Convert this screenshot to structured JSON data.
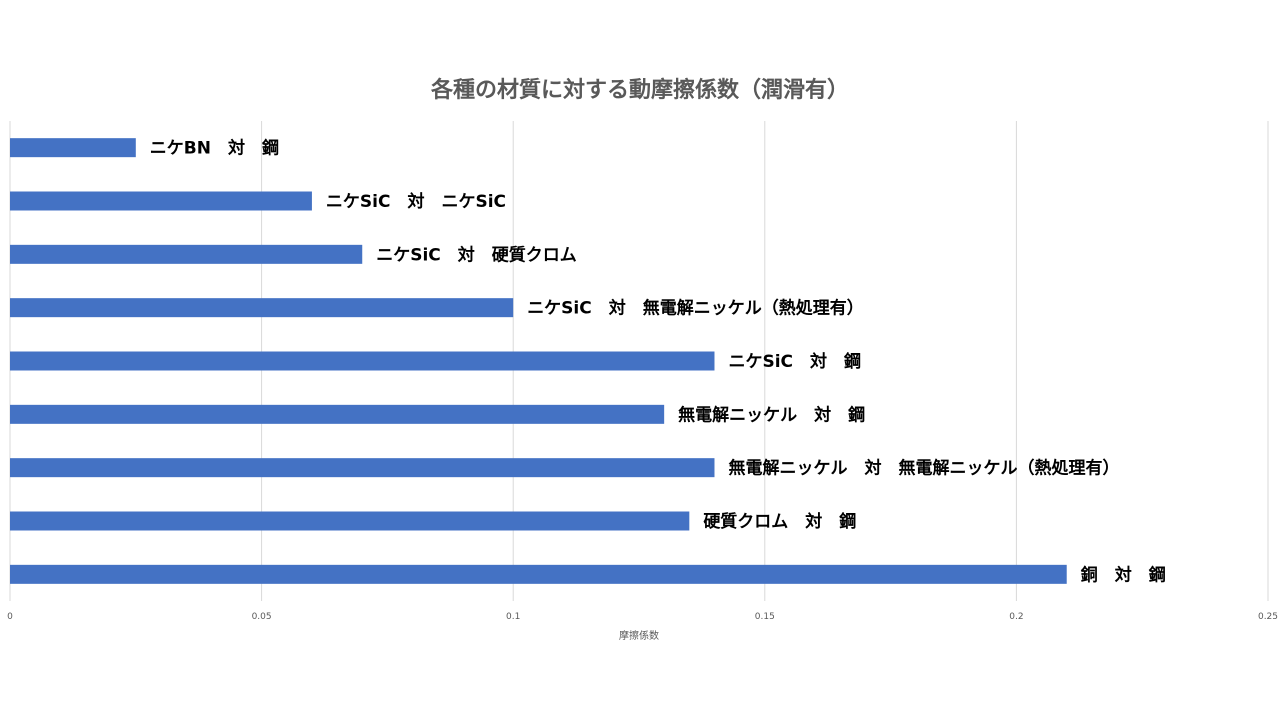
{
  "chart_data": {
    "type": "bar",
    "orientation": "horizontal",
    "title": "各種の材質に対する動摩擦係数（潤滑有）",
    "xlabel": "摩擦係数",
    "ylabel": "",
    "xlim": [
      0,
      0.25
    ],
    "xticks": [
      "0",
      "0.05",
      "0.1",
      "0.15",
      "0.2",
      "0.25"
    ],
    "grid": true,
    "bar_color": "#4472C4",
    "grid_color": "#D9D9D9",
    "categories": [
      "ニケBN　対　鋼",
      "ニケSiC　対　ニケSiC",
      "ニケSiC　対　硬質クロム",
      "ニケSiC　対　無電解ニッケル（熱処理有）",
      "ニケSiC　対　鋼",
      "無電解ニッケル　対　鋼",
      "無電解ニッケル　対　無電解ニッケル（熱処理有）",
      "硬質クロム　対　鋼",
      "銅　対　鋼"
    ],
    "values": [
      0.025,
      0.06,
      0.07,
      0.1,
      0.14,
      0.13,
      0.14,
      0.135,
      0.21
    ]
  }
}
